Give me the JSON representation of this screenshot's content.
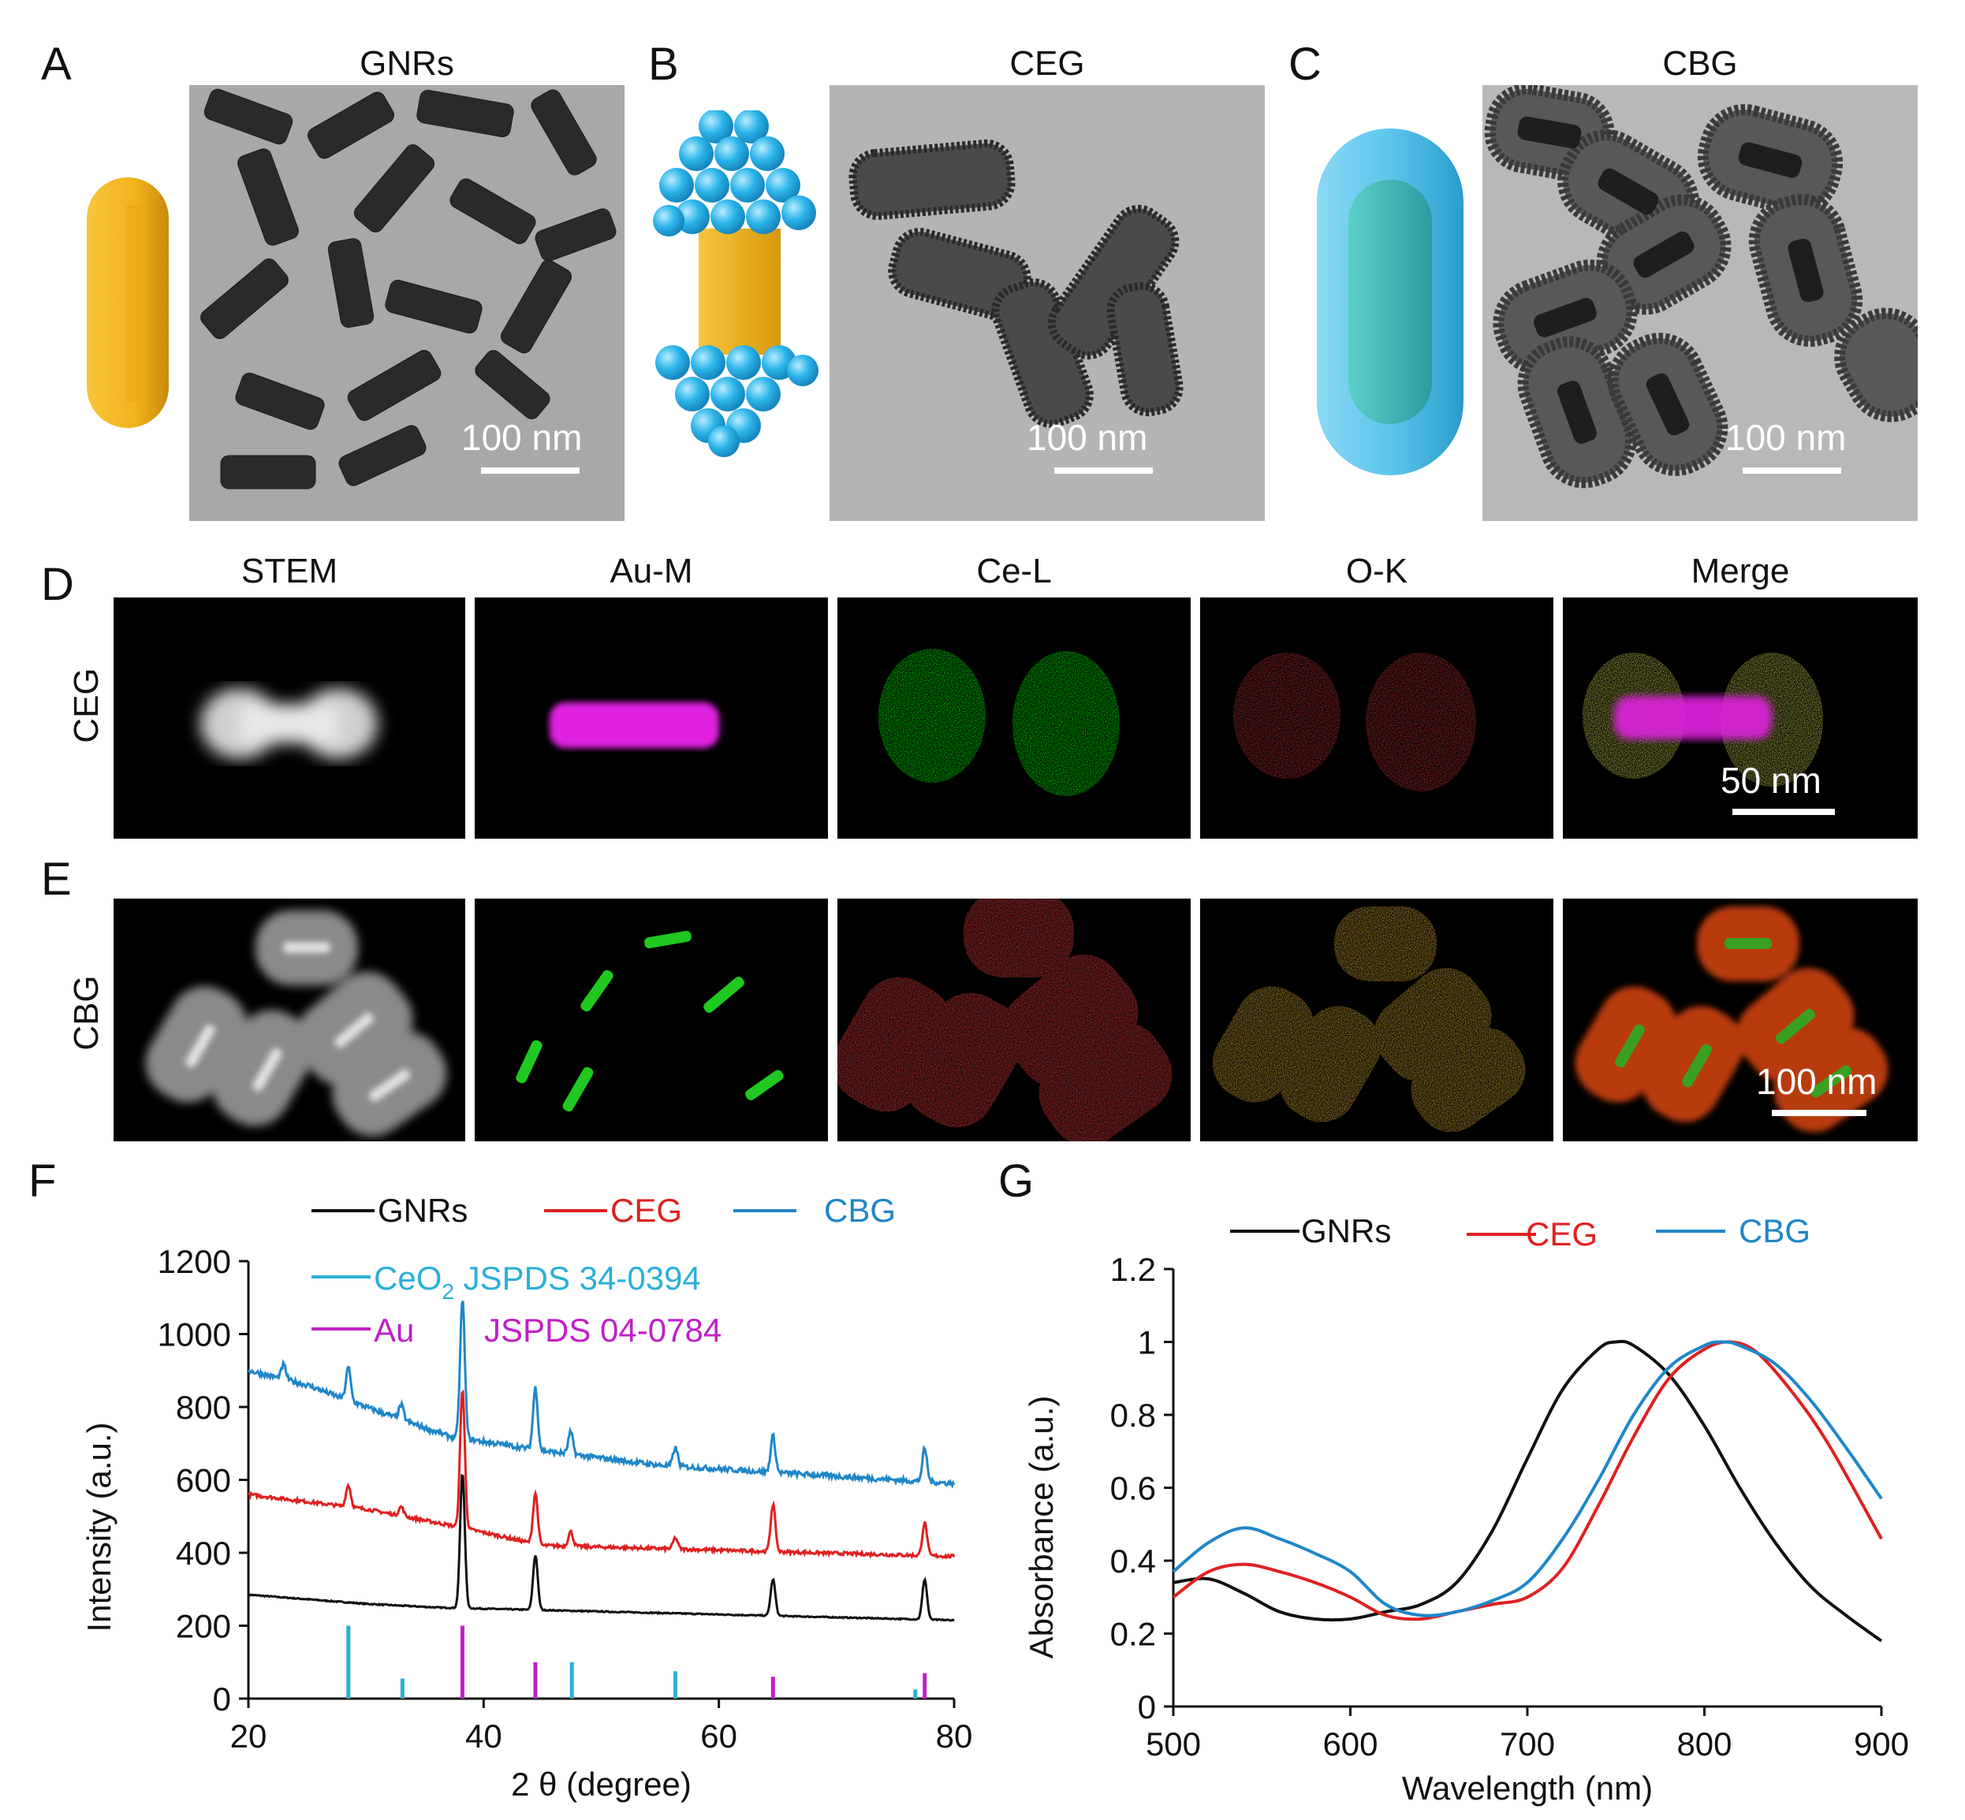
{
  "panels": {
    "A": {
      "letter": "A",
      "title": "GNRs",
      "scale": "100 nm"
    },
    "B": {
      "letter": "B",
      "title": "CEG",
      "scale": "100 nm"
    },
    "C": {
      "letter": "C",
      "title": "CBG",
      "scale": "100 nm"
    },
    "D": {
      "letter": "D",
      "row_label": "CEG",
      "scale": "50 nm"
    },
    "E": {
      "letter": "E",
      "row_label": "CBG",
      "scale": "100 nm"
    },
    "F": {
      "letter": "F"
    },
    "G": {
      "letter": "G"
    }
  },
  "map_titles": [
    "STEM",
    "Au-M",
    "Ce-L",
    "O-K",
    "Merge"
  ],
  "colors": {
    "gold": "#f2b21c",
    "sphere": "#2cb5ea",
    "shell": "#5cc6ec",
    "core": "#3ab9b9",
    "gnrs": "#111111",
    "ceg": "#e02020",
    "cbg": "#1f86c8",
    "ceo2_ref": "#2ab0d8",
    "au_ref": "#c020c8",
    "magenta_map": "#e020e0",
    "green_map": "#20d020",
    "red_map": "#e01818",
    "orange_map": "#f08a10"
  },
  "chart_data": [
    {
      "id": "F",
      "type": "line",
      "xlabel": "2 θ (degree)",
      "ylabel": "Intensity (a.u.)",
      "xlim": [
        20,
        80
      ],
      "ylim": [
        0,
        1200
      ],
      "xticks": [
        20,
        40,
        60,
        80
      ],
      "yticks": [
        0,
        200,
        400,
        600,
        800,
        1000,
        1200
      ],
      "legend": [
        {
          "name": "GNRs",
          "color": "#111111"
        },
        {
          "name": "CEG",
          "color": "#e02020"
        },
        {
          "name": "CBG",
          "color": "#1f86c8"
        },
        {
          "name_main": "CeO",
          "name_sub": "2",
          "name_rest": " JSPDS 34-0394",
          "color": "#2ab0d8"
        },
        {
          "name_main": "Au",
          "name_rest": "JSPDS 04-0784",
          "color": "#c020c8"
        }
      ],
      "series": [
        {
          "name": "GNRs",
          "baseline": [
            [
              20,
              285
            ],
            [
              30,
              260
            ],
            [
              36,
              250
            ],
            [
              80,
              215
            ]
          ],
          "peaks": [
            [
              38.2,
              370
            ],
            [
              44.4,
              150
            ],
            [
              64.6,
              100
            ],
            [
              77.5,
              110
            ]
          ]
        },
        {
          "name": "CEG",
          "baseline": [
            [
              20,
              560
            ],
            [
              30,
              520
            ],
            [
              38,
              470
            ],
            [
              45,
              420
            ],
            [
              80,
              390
            ]
          ],
          "peaks": [
            [
              28.5,
              60
            ],
            [
              33,
              25
            ],
            [
              38.2,
              380
            ],
            [
              44.4,
              140
            ],
            [
              47.4,
              40
            ],
            [
              56.3,
              30
            ],
            [
              64.6,
              130
            ],
            [
              77.5,
              90
            ]
          ]
        },
        {
          "name": "CBG",
          "baseline": [
            [
              20,
              900
            ],
            [
              25,
              860
            ],
            [
              30,
              800
            ],
            [
              37,
              720
            ],
            [
              45,
              680
            ],
            [
              55,
              640
            ],
            [
              80,
              590
            ]
          ],
          "peaks": [
            [
              23,
              40
            ],
            [
              28.5,
              90
            ],
            [
              33,
              40
            ],
            [
              38.2,
              380
            ],
            [
              44.4,
              170
            ],
            [
              47.4,
              60
            ],
            [
              56.3,
              50
            ],
            [
              64.6,
              100
            ],
            [
              77.5,
              90
            ]
          ]
        }
      ],
      "reference_lines": [
        {
          "name": "CeO2",
          "x": [
            28.5,
            33.1,
            47.5,
            56.3,
            76.7
          ],
          "y": [
            200,
            55,
            100,
            75,
            25
          ]
        },
        {
          "name": "Au",
          "x": [
            38.2,
            44.4,
            64.6,
            77.5
          ],
          "y": [
            200,
            100,
            60,
            70
          ]
        }
      ]
    },
    {
      "id": "G",
      "type": "line",
      "xlabel": "Wavelength (nm)",
      "ylabel": "Absorbance (a.u.)",
      "xlim": [
        500,
        900
      ],
      "ylim": [
        0,
        1.2
      ],
      "xticks": [
        500,
        600,
        700,
        800,
        900
      ],
      "yticks": [
        0,
        0.2,
        0.4,
        0.6,
        0.8,
        1,
        1.2
      ],
      "ytick_labels": [
        "0",
        "0.2",
        "0.4",
        "0.6",
        "0.8",
        "1",
        "1.2"
      ],
      "legend": [
        {
          "name": "GNRs",
          "color": "#111111"
        },
        {
          "name": "CEG",
          "color": "#e02020"
        },
        {
          "name": "CBG",
          "color": "#1f86c8"
        }
      ],
      "series": [
        {
          "name": "GNRs",
          "x": [
            500,
            520,
            540,
            560,
            580,
            600,
            620,
            640,
            660,
            680,
            700,
            720,
            740,
            750,
            760,
            780,
            800,
            820,
            840,
            860,
            880,
            900
          ],
          "y": [
            0.34,
            0.35,
            0.31,
            0.26,
            0.24,
            0.24,
            0.26,
            0.28,
            0.34,
            0.48,
            0.68,
            0.87,
            0.98,
            1.0,
            0.99,
            0.91,
            0.77,
            0.6,
            0.45,
            0.33,
            0.25,
            0.18
          ]
        },
        {
          "name": "CEG",
          "x": [
            500,
            520,
            540,
            560,
            580,
            600,
            620,
            640,
            660,
            680,
            700,
            720,
            740,
            760,
            780,
            800,
            815,
            830,
            850,
            870,
            900
          ],
          "y": [
            0.3,
            0.37,
            0.39,
            0.37,
            0.34,
            0.3,
            0.25,
            0.24,
            0.26,
            0.28,
            0.3,
            0.38,
            0.55,
            0.74,
            0.9,
            0.98,
            1.0,
            0.97,
            0.86,
            0.72,
            0.46
          ]
        },
        {
          "name": "CBG",
          "x": [
            500,
            520,
            540,
            560,
            580,
            600,
            620,
            640,
            660,
            680,
            700,
            720,
            740,
            760,
            780,
            800,
            810,
            820,
            840,
            860,
            880,
            900
          ],
          "y": [
            0.37,
            0.45,
            0.49,
            0.46,
            0.42,
            0.37,
            0.28,
            0.25,
            0.26,
            0.29,
            0.34,
            0.46,
            0.62,
            0.8,
            0.93,
            0.99,
            1.0,
            0.99,
            0.94,
            0.84,
            0.71,
            0.57
          ]
        }
      ]
    }
  ]
}
